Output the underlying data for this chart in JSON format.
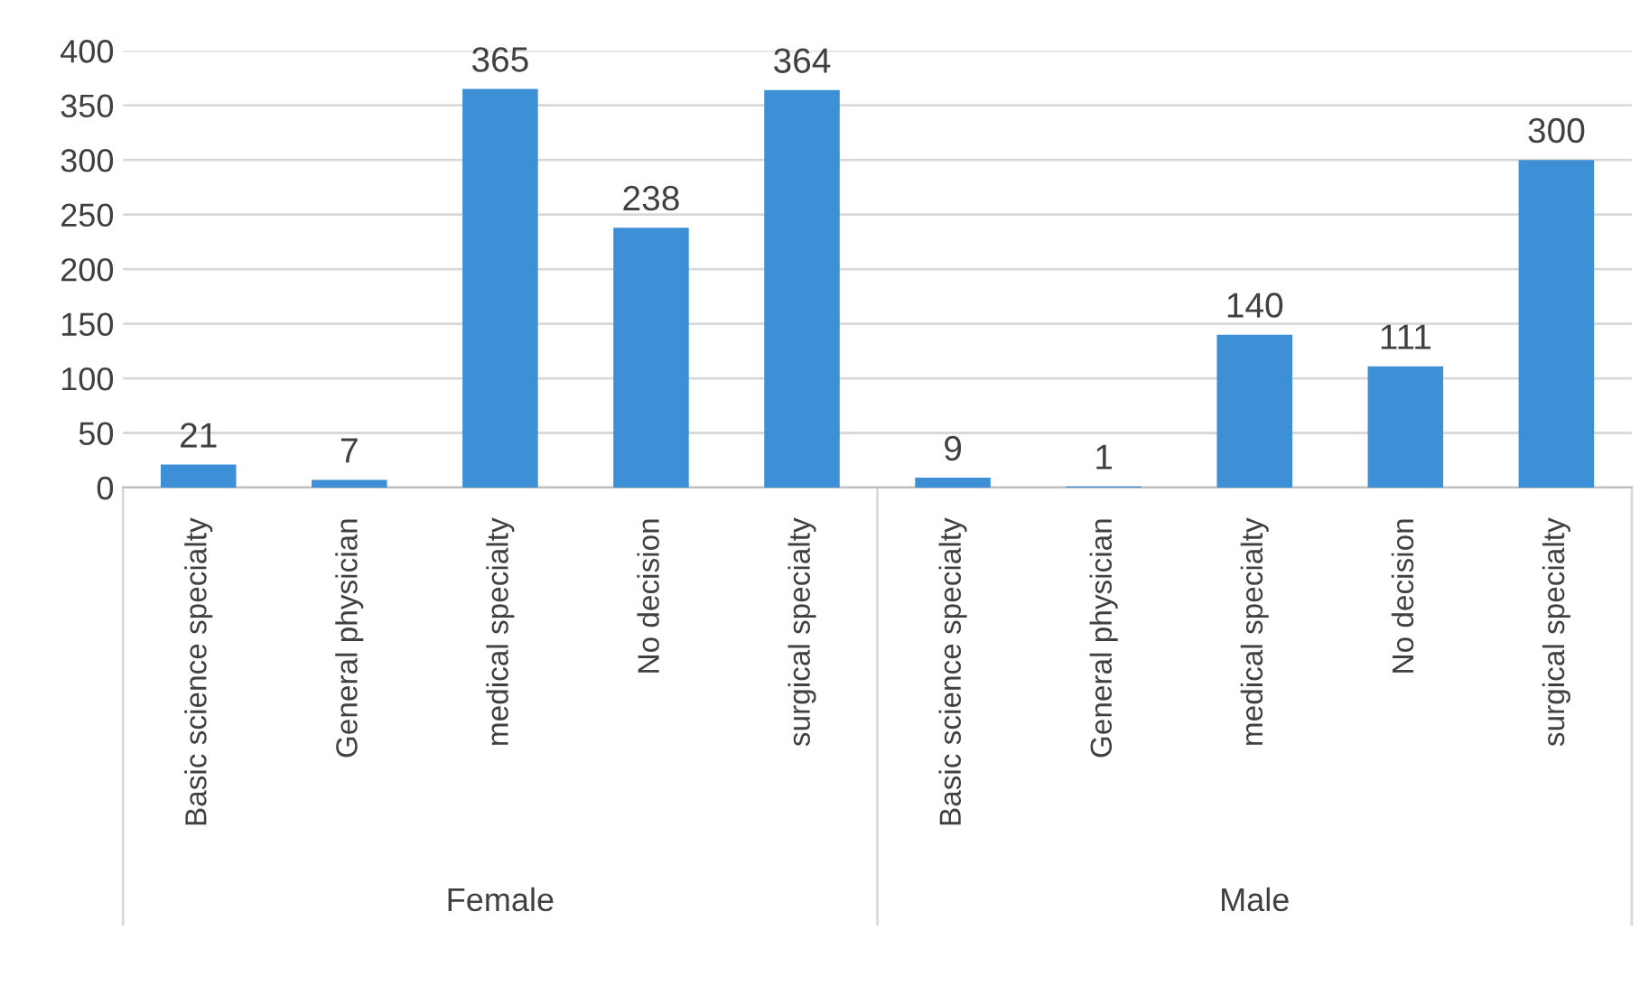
{
  "chart_data": {
    "type": "bar",
    "categories": [
      "Basic science specialty",
      "General physician",
      "medical specialty",
      "No decision",
      "surgical specialty",
      "Basic science specialty",
      "General physician",
      "medical specialty",
      "No decision",
      "surgical specialty"
    ],
    "values": [
      21,
      7,
      365,
      238,
      364,
      9,
      1,
      140,
      111,
      300
    ],
    "color": "#3d8fd6",
    "ylim": [
      0,
      400
    ],
    "yticks": [
      0,
      50,
      100,
      150,
      200,
      250,
      300,
      350,
      400
    ],
    "grid": "y",
    "data_labels": true,
    "annotations": [
      "Female",
      "Male"
    ]
  }
}
